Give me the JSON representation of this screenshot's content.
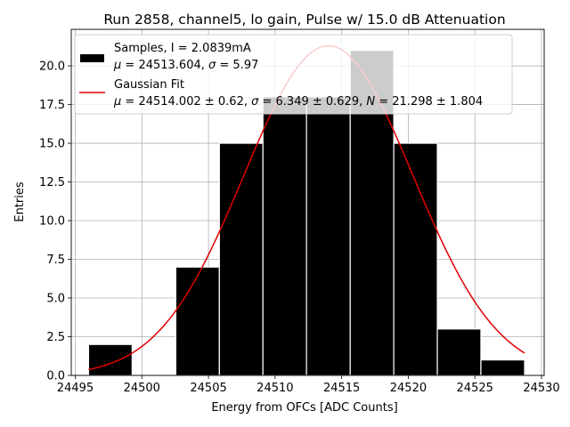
{
  "chart_data": {
    "type": "bar",
    "title": "Run 2858, channel5, lo gain, Pulse w/ 15.0 dB Attenuation",
    "xlabel": "Energy from OFCs [ADC Counts]",
    "ylabel": "Entries",
    "xlim": [
      24494.7,
      24530.2
    ],
    "ylim": [
      0,
      22.36
    ],
    "xticks": [
      24495,
      24500,
      24505,
      24510,
      24515,
      24520,
      24525,
      24530
    ],
    "yticks": [
      0.0,
      2.5,
      5.0,
      7.5,
      10.0,
      12.5,
      15.0,
      17.5,
      20.0
    ],
    "grid": true,
    "legend_position": "top-left",
    "bin_edges": [
      24496.0,
      24499.27,
      24502.55,
      24505.82,
      24509.09,
      24512.36,
      24515.64,
      24518.91,
      24522.18,
      24525.45,
      24528.73
    ],
    "counts": [
      2,
      0,
      7,
      15,
      18,
      18,
      21,
      15,
      3,
      1
    ],
    "series": [
      {
        "name": "Samples, I = 2.0839mA",
        "name_line2_prefix": "μ",
        "name_line2_rest": " = 24513.604, ",
        "name_line2_sigma": "σ",
        "name_line2_tail": " = 5.97",
        "color": "#000000",
        "edge_color": "#ffffff"
      },
      {
        "name": "Gaussian Fit",
        "name_line2_prefix": "μ",
        "name_line2_rest": " = 24514.002 ± 0.62, ",
        "name_line2_sigma": "σ",
        "name_line2_mid": " = 6.349 ± 0.629, ",
        "name_line2_n": "N",
        "name_line2_tail": " = 21.298 ± 1.804",
        "color": "#e00000",
        "fit": {
          "mu": 24514.002,
          "sigma": 6.349,
          "N": 21.298,
          "x_range": [
            24496.0,
            24528.73
          ]
        }
      }
    ]
  }
}
